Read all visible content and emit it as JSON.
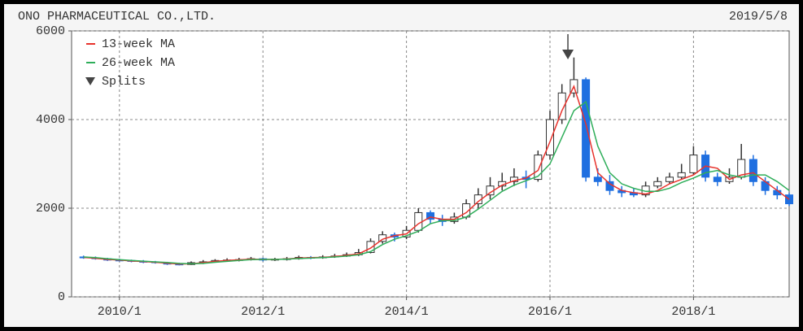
{
  "chart_data": {
    "type": "candlestick",
    "title": "ONO PHARMACEUTICAL CO.,LTD.",
    "date": "2019/5/8",
    "x": [
      "2009/7",
      "2009/9",
      "2009/11",
      "2010/1",
      "2010/3",
      "2010/5",
      "2010/7",
      "2010/9",
      "2010/11",
      "2011/1",
      "2011/3",
      "2011/5",
      "2011/7",
      "2011/9",
      "2011/11",
      "2012/1",
      "2012/3",
      "2012/5",
      "2012/7",
      "2012/9",
      "2012/11",
      "2013/1",
      "2013/3",
      "2013/5",
      "2013/7",
      "2013/9",
      "2013/11",
      "2014/1",
      "2014/3",
      "2014/5",
      "2014/7",
      "2014/9",
      "2014/11",
      "2015/1",
      "2015/3",
      "2015/5",
      "2015/7",
      "2015/9",
      "2015/11",
      "2016/1",
      "2016/3",
      "2016/5",
      "2016/7",
      "2016/9",
      "2016/11",
      "2017/1",
      "2017/3",
      "2017/5",
      "2017/7",
      "2017/9",
      "2017/11",
      "2018/1",
      "2018/3",
      "2018/5",
      "2018/7",
      "2018/9",
      "2018/11",
      "2019/1",
      "2019/3",
      "2019/5"
    ],
    "open": [
      900,
      880,
      860,
      830,
      820,
      800,
      790,
      770,
      740,
      730,
      770,
      790,
      820,
      830,
      840,
      860,
      830,
      850,
      860,
      890,
      880,
      900,
      920,
      950,
      1000,
      1250,
      1400,
      1350,
      1500,
      1900,
      1750,
      1700,
      1800,
      2100,
      2300,
      2500,
      2600,
      2700,
      2650,
      3200,
      4000,
      4600,
      4900,
      2700,
      2600,
      2400,
      2350,
      2300,
      2500,
      2600,
      2700,
      2800,
      3200,
      2700,
      2600,
      2700,
      3100,
      2600,
      2400,
      2300
    ],
    "high": [
      930,
      910,
      880,
      860,
      840,
      830,
      810,
      790,
      770,
      800,
      830,
      850,
      870,
      880,
      900,
      880,
      880,
      900,
      930,
      920,
      940,
      970,
      1000,
      1080,
      1320,
      1480,
      1450,
      1600,
      2000,
      1950,
      1850,
      1900,
      2200,
      2450,
      2700,
      2800,
      2900,
      2850,
      3300,
      4200,
      4800,
      5400,
      4950,
      2900,
      2750,
      2500,
      2450,
      2600,
      2700,
      2800,
      3000,
      3400,
      3300,
      2800,
      2900,
      3450,
      3200,
      2700,
      2500,
      2350
    ],
    "low": [
      860,
      840,
      810,
      800,
      780,
      760,
      750,
      720,
      710,
      720,
      740,
      770,
      800,
      800,
      820,
      800,
      810,
      820,
      840,
      850,
      860,
      880,
      900,
      920,
      980,
      1200,
      1250,
      1300,
      1450,
      1650,
      1600,
      1650,
      1750,
      2000,
      2200,
      2400,
      2500,
      2450,
      2600,
      3100,
      3900,
      4500,
      2600,
      2500,
      2300,
      2250,
      2250,
      2250,
      2450,
      2550,
      2650,
      2750,
      2600,
      2500,
      2550,
      2650,
      2500,
      2300,
      2200,
      2050
    ],
    "close": [
      880,
      860,
      830,
      820,
      800,
      790,
      770,
      740,
      730,
      770,
      790,
      820,
      830,
      840,
      860,
      830,
      850,
      860,
      890,
      880,
      900,
      920,
      950,
      1000,
      1250,
      1400,
      1350,
      1500,
      1900,
      1750,
      1700,
      1800,
      2100,
      2300,
      2500,
      2600,
      2700,
      2650,
      3200,
      4000,
      4600,
      4900,
      2700,
      2600,
      2400,
      2350,
      2300,
      2500,
      2600,
      2700,
      2800,
      3200,
      2700,
      2600,
      2700,
      3100,
      2600,
      2400,
      2300,
      2100
    ],
    "series": [
      {
        "name": "13-week MA",
        "color": "#e8322c",
        "values": [
          890,
          870,
          845,
          830,
          810,
          795,
          780,
          760,
          740,
          745,
          770,
          800,
          820,
          835,
          850,
          845,
          845,
          855,
          875,
          885,
          890,
          910,
          935,
          970,
          1100,
          1300,
          1380,
          1420,
          1650,
          1800,
          1750,
          1750,
          1900,
          2150,
          2350,
          2520,
          2620,
          2680,
          2850,
          3500,
          4200,
          4750,
          3900,
          2800,
          2550,
          2400,
          2350,
          2320,
          2400,
          2550,
          2650,
          2750,
          2950,
          2900,
          2650,
          2750,
          2800,
          2600,
          2400,
          2200
        ]
      },
      {
        "name": "26-week MA",
        "color": "#2fae5a",
        "values": [
          900,
          885,
          860,
          840,
          820,
          805,
          790,
          775,
          755,
          745,
          755,
          780,
          800,
          820,
          840,
          845,
          845,
          850,
          865,
          875,
          885,
          900,
          920,
          950,
          1020,
          1180,
          1300,
          1380,
          1480,
          1650,
          1720,
          1720,
          1800,
          1980,
          2180,
          2380,
          2520,
          2620,
          2720,
          3000,
          3600,
          4200,
          4400,
          3400,
          2800,
          2550,
          2450,
          2380,
          2380,
          2450,
          2580,
          2680,
          2800,
          2850,
          2750,
          2700,
          2750,
          2750,
          2600,
          2400
        ]
      }
    ],
    "splits": {
      "name": "Splits",
      "x": [
        "2016/4"
      ]
    },
    "xlim": [
      "2009/5",
      "2019/5"
    ],
    "xticks": [
      "2010/1",
      "2012/1",
      "2014/1",
      "2016/1",
      "2018/1"
    ],
    "ylim": [
      0,
      6000
    ],
    "yticks": [
      0,
      2000,
      4000,
      6000
    ],
    "grid": true,
    "up_color": "#ffffff",
    "down_color": "#1f6fe0"
  }
}
